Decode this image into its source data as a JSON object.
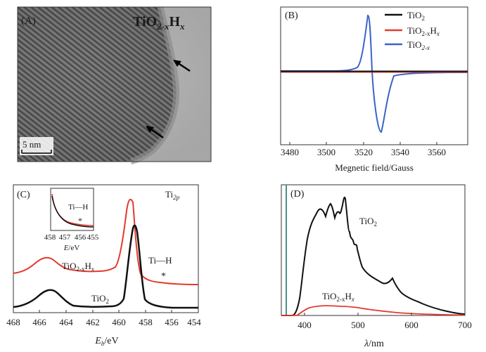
{
  "panelA": {
    "panel_label": "(A)",
    "title_main": "TiO",
    "title_sub": "2-x",
    "title_tail": "H",
    "title_tailsub": "x",
    "scale_bar_label": "5 nm"
  },
  "panelB": {
    "panel_label": "(B)",
    "legend": [
      {
        "base": "TiO",
        "sub": "2",
        "color": "#111111"
      },
      {
        "base": "TiO",
        "sub": "2-x",
        "tail": "H",
        "tailsub": "x",
        "color": "#e23a2e"
      },
      {
        "base": "TiO",
        "sub": "2-x",
        "color": "#3a64c8"
      }
    ],
    "xticks": [
      "3480",
      "3500",
      "3520",
      "3540",
      "3560"
    ],
    "xlabel": "Megnetic field/Gauss"
  },
  "panelC": {
    "panel_label": "(C)",
    "corner_base": "Ti",
    "corner_sub": "2p",
    "inset_label": "Ti—H",
    "inset_star": "*",
    "inset_xticks": [
      "458",
      "457",
      "456",
      "455"
    ],
    "inset_xlabel_e": "E",
    "inset_xlabel_unit": "/eV",
    "curve_labels": {
      "red_base": "TiO",
      "red_sub": "2-x",
      "red_tail": "H",
      "red_tailsub": "x",
      "black_base": "TiO",
      "black_sub": "2",
      "tih": "Ti—H",
      "star": "*"
    },
    "xticks": [
      "468",
      "466",
      "464",
      "462",
      "460",
      "458",
      "456",
      "454"
    ],
    "xlabel_e": "E",
    "xlabel_sub": "b",
    "xlabel_unit": "/eV"
  },
  "panelD": {
    "panel_label": "(D)",
    "label_black_base": "TiO",
    "label_black_sub": "2",
    "label_red_base": "TiO",
    "label_red_sub": "2-x",
    "label_red_tail": "H",
    "label_red_tailsub": "x",
    "xticks": [
      "400",
      "500",
      "600",
      "700"
    ],
    "xlabel_lambda": "λ",
    "xlabel_unit": "/nm"
  },
  "colors": {
    "black": "#111111",
    "red": "#e23a2e",
    "blue": "#3a64c8",
    "teal": "#4f8e8e"
  }
}
